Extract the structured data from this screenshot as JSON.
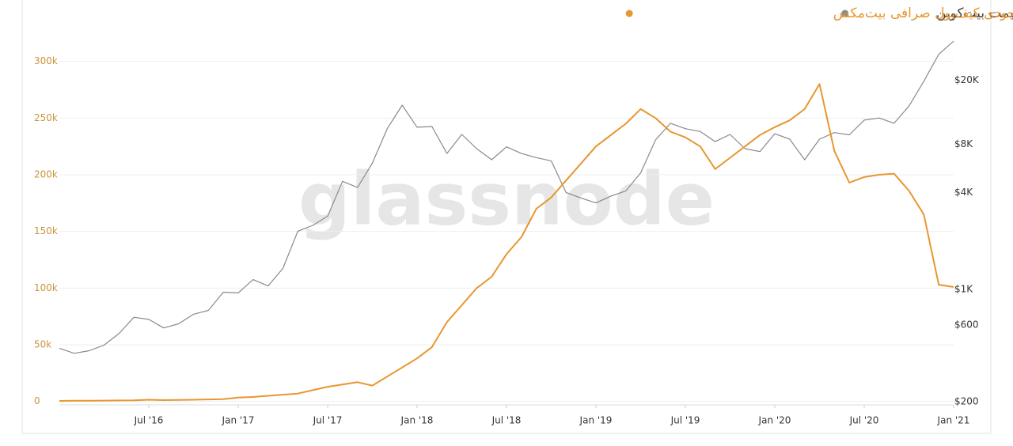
{
  "chart_data": {
    "type": "line",
    "watermark": "glassnode",
    "x": [
      "2016-01",
      "2016-02",
      "2016-03",
      "2016-04",
      "2016-05",
      "2016-06",
      "2016-07",
      "2016-08",
      "2016-09",
      "2016-10",
      "2016-11",
      "2016-12",
      "2017-01",
      "2017-02",
      "2017-03",
      "2017-04",
      "2017-05",
      "2017-06",
      "2017-07",
      "2017-08",
      "2017-09",
      "2017-10",
      "2017-11",
      "2017-12",
      "2018-01",
      "2018-02",
      "2018-03",
      "2018-04",
      "2018-05",
      "2018-06",
      "2018-07",
      "2018-08",
      "2018-09",
      "2018-10",
      "2018-11",
      "2018-12",
      "2019-01",
      "2019-02",
      "2019-03",
      "2019-04",
      "2019-05",
      "2019-06",
      "2019-07",
      "2019-08",
      "2019-09",
      "2019-10",
      "2019-11",
      "2019-12",
      "2020-01",
      "2020-02",
      "2020-03",
      "2020-04",
      "2020-05",
      "2020-06",
      "2020-07",
      "2020-08",
      "2020-09",
      "2020-10",
      "2020-11",
      "2020-12",
      "2021-01"
    ],
    "xlim": [
      "2016-01",
      "2021-01"
    ],
    "xticks": [
      {
        "value": "2016-07",
        "label": "Jul '16"
      },
      {
        "value": "2017-01",
        "label": "Jan '17"
      },
      {
        "value": "2017-07",
        "label": "Jul '17"
      },
      {
        "value": "2018-01",
        "label": "Jan '18"
      },
      {
        "value": "2018-07",
        "label": "Jul '18"
      },
      {
        "value": "2019-01",
        "label": "Jan '19"
      },
      {
        "value": "2019-07",
        "label": "Jul '19"
      },
      {
        "value": "2020-01",
        "label": "Jan '20"
      },
      {
        "value": "2020-07",
        "label": "Jul '20"
      },
      {
        "value": "2021-01",
        "label": "Jan '21"
      }
    ],
    "ylim": [
      -3000,
      350000
    ],
    "yticks": [
      0,
      {
        "value": 50000,
        "label": "50k"
      },
      {
        "value": 100000,
        "label": "100k"
      },
      {
        "value": 150000,
        "label": "150k"
      },
      {
        "value": 200000,
        "label": "200k"
      },
      {
        "value": 250000,
        "label": "250k"
      },
      {
        "value": 300000,
        "label": "300k"
      }
    ],
    "y2lim": [
      191,
      59000
    ],
    "y2_log": true,
    "y2ticks": [
      {
        "value": 200,
        "label": "$200"
      },
      {
        "value": 600,
        "label": "$600"
      },
      {
        "value": 1000,
        "label": "$1K"
      },
      {
        "value": 4000,
        "label": "$4K"
      },
      {
        "value": 8000,
        "label": "$8K"
      },
      {
        "value": 20000,
        "label": "$20K"
      }
    ],
    "grid": true,
    "legend": "top-right",
    "series": [
      {
        "name": "قیمت بیت‌کوین",
        "color": "#8a8a8a",
        "axis": "y2",
        "values": [
          430,
          400,
          415,
          450,
          530,
          670,
          650,
          575,
          610,
          700,
          740,
          960,
          950,
          1150,
          1050,
          1350,
          2300,
          2500,
          2850,
          4700,
          4300,
          6100,
          10000,
          14000,
          10200,
          10300,
          7000,
          9200,
          7500,
          6400,
          7700,
          7000,
          6600,
          6300,
          4000,
          3700,
          3450,
          3800,
          4100,
          5300,
          8500,
          10800,
          10000,
          9600,
          8300,
          9200,
          7500,
          7200,
          9300,
          8600,
          6400,
          8600,
          9450,
          9150,
          11300,
          11650,
          10800,
          13800,
          19700,
          29000,
          35000
        ]
      },
      {
        "name": "موجودی کیف‌پول صرافی بیت‌مکس",
        "color": "#e8962e",
        "values": [
          500,
          600,
          700,
          800,
          900,
          1000,
          1500,
          1200,
          1300,
          1500,
          1800,
          2000,
          3500,
          4000,
          5000,
          6000,
          7000,
          10000,
          13000,
          15000,
          17000,
          14000,
          22000,
          30000,
          38000,
          48000,
          70000,
          85000,
          100000,
          110000,
          130000,
          145000,
          170000,
          180000,
          195000,
          210000,
          225000,
          235000,
          245000,
          258000,
          250000,
          238000,
          233000,
          225000,
          205000,
          215000,
          225000,
          235000,
          242000,
          248000,
          258000,
          280000,
          221000,
          193000,
          198000,
          200000,
          201000,
          186000,
          165000,
          103000,
          101000
        ]
      }
    ]
  }
}
